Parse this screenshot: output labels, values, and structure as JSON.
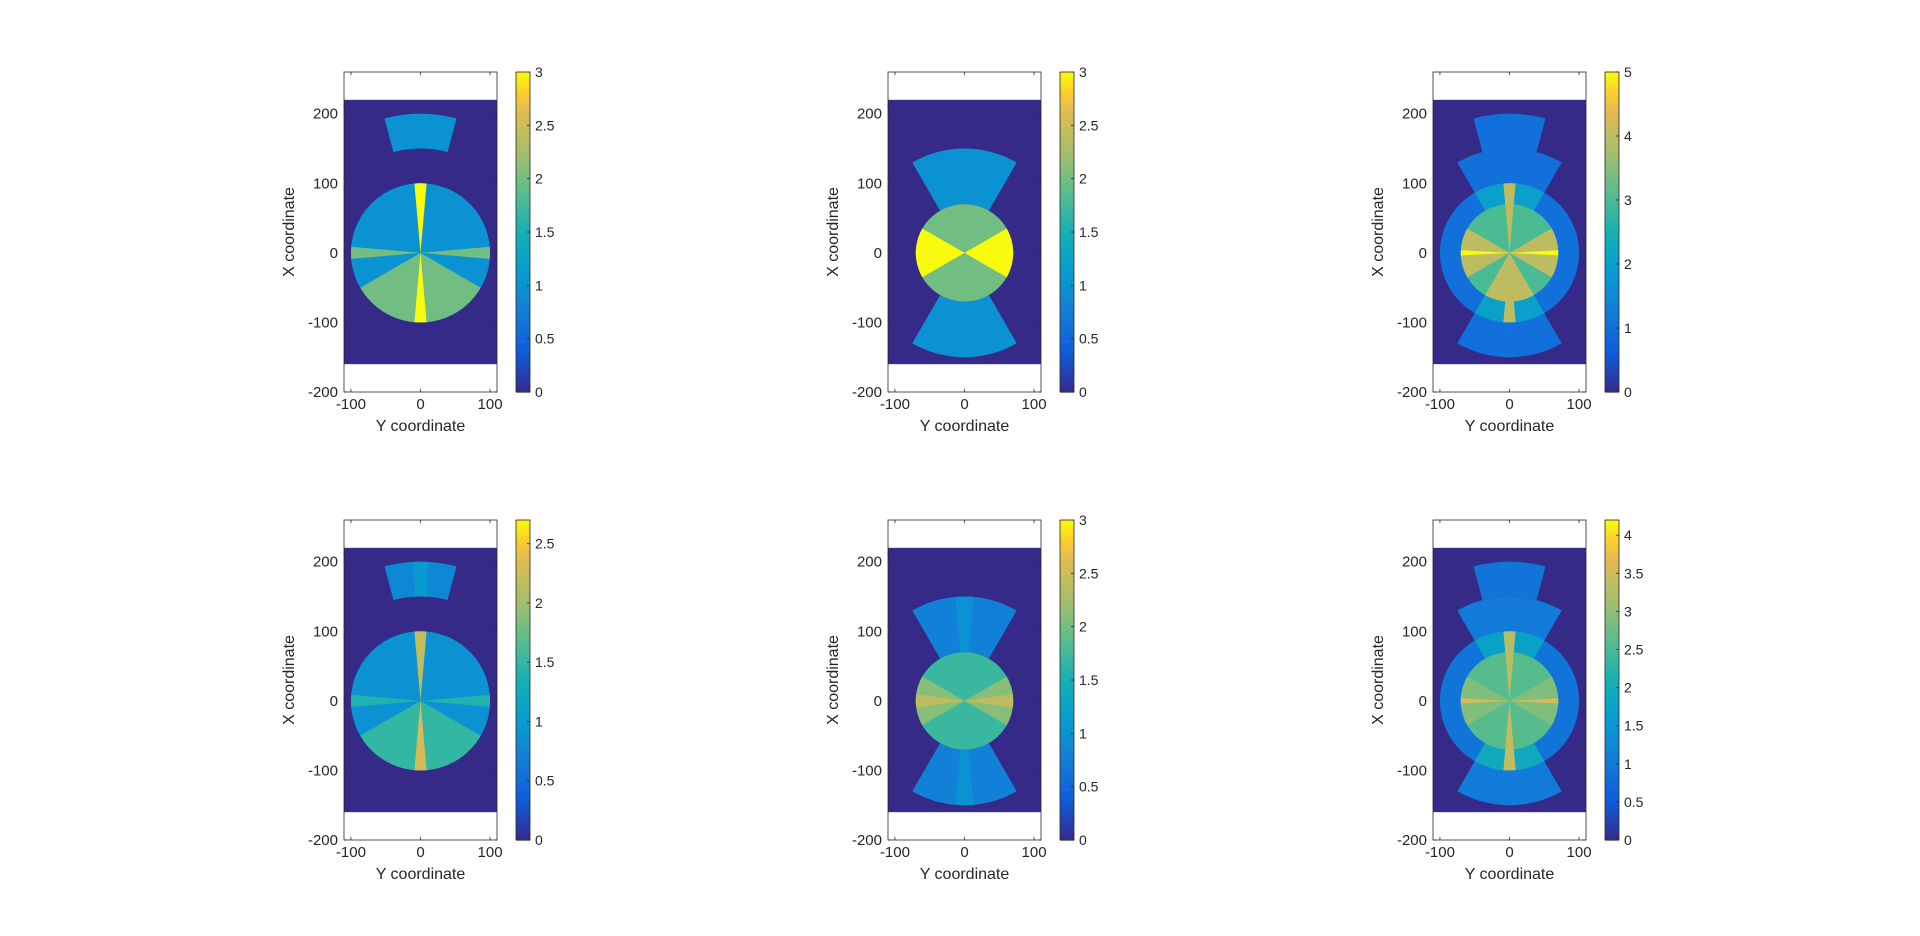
{
  "chart_data": [
    {
      "type": "heatmap",
      "xlabel": "Y coordinate",
      "ylabel": "X coordinate",
      "xlim": [
        -110,
        110
      ],
      "ylim": [
        -200,
        260
      ],
      "x_ticks": [
        "-100",
        "0",
        "100"
      ],
      "y_ticks": [
        "-200",
        "-100",
        "0",
        "100",
        "200"
      ],
      "background": {
        "x": [
          -110,
          110
        ],
        "y": [
          -160,
          220
        ],
        "value": 0
      },
      "colorbar": {
        "min": 0,
        "max": 3,
        "ticks": [
          "0",
          "0.5",
          "1",
          "1.5",
          "2",
          "2.5",
          "3"
        ]
      },
      "regions": [
        {
          "shape": "sector",
          "r_inner": 150,
          "r_outer": 200,
          "angle_from": 75,
          "angle_to": 105,
          "value": 1
        },
        {
          "shape": "sector",
          "r_inner": 0,
          "r_outer": 100,
          "angle_from": 0,
          "angle_to": 360,
          "value": 1
        },
        {
          "shape": "sector",
          "r_inner": 0,
          "r_outer": 100,
          "angle_from": 85,
          "angle_to": 95,
          "value": 3
        },
        {
          "shape": "sector",
          "r_inner": 0,
          "r_outer": 100,
          "angle_from": 210,
          "angle_to": 330,
          "value": 2
        },
        {
          "shape": "sector",
          "r_inner": 0,
          "r_outer": 100,
          "angle_from": 265,
          "angle_to": 275,
          "value": 3
        },
        {
          "shape": "sector",
          "r_inner": 0,
          "r_outer": 100,
          "angle_from": -5,
          "angle_to": 5,
          "value": 2
        },
        {
          "shape": "sector",
          "r_inner": 0,
          "r_outer": 100,
          "angle_from": 175,
          "angle_to": 185,
          "value": 2
        }
      ]
    },
    {
      "type": "heatmap",
      "xlabel": "Y coordinate",
      "ylabel": "X coordinate",
      "xlim": [
        -110,
        110
      ],
      "ylim": [
        -200,
        260
      ],
      "x_ticks": [
        "-100",
        "0",
        "100"
      ],
      "y_ticks": [
        "-200",
        "-100",
        "0",
        "100",
        "200"
      ],
      "background": {
        "x": [
          -110,
          110
        ],
        "y": [
          -160,
          220
        ],
        "value": 0
      },
      "colorbar": {
        "min": 0,
        "max": 3,
        "ticks": [
          "0",
          "0.5",
          "1",
          "1.5",
          "2",
          "2.5",
          "3"
        ]
      },
      "regions": [
        {
          "shape": "sector",
          "r_inner": 70,
          "r_outer": 150,
          "angle_from": 60,
          "angle_to": 120,
          "value": 1
        },
        {
          "shape": "sector",
          "r_inner": 70,
          "r_outer": 150,
          "angle_from": 240,
          "angle_to": 300,
          "value": 1
        },
        {
          "shape": "sector",
          "r_inner": 0,
          "r_outer": 70,
          "angle_from": 0,
          "angle_to": 360,
          "value": 2
        },
        {
          "shape": "sector",
          "r_inner": 0,
          "r_outer": 70,
          "angle_from": -30,
          "angle_to": 30,
          "value": 3
        },
        {
          "shape": "sector",
          "r_inner": 0,
          "r_outer": 70,
          "angle_from": 150,
          "angle_to": 210,
          "value": 3
        }
      ]
    },
    {
      "type": "heatmap",
      "xlabel": "Y coordinate",
      "ylabel": "X coordinate",
      "xlim": [
        -110,
        110
      ],
      "ylim": [
        -200,
        260
      ],
      "x_ticks": [
        "-100",
        "0",
        "100"
      ],
      "y_ticks": [
        "-200",
        "-100",
        "0",
        "100",
        "200"
      ],
      "background": {
        "x": [
          -110,
          110
        ],
        "y": [
          -160,
          220
        ],
        "value": 0
      },
      "colorbar": {
        "min": 0,
        "max": 5,
        "ticks": [
          "0",
          "1",
          "2",
          "3",
          "4",
          "5"
        ]
      },
      "regions": [
        {
          "shape": "sector",
          "r_inner": 150,
          "r_outer": 200,
          "angle_from": 75,
          "angle_to": 105,
          "value": 1
        },
        {
          "shape": "sector",
          "r_inner": 0,
          "r_outer": 100,
          "angle_from": 0,
          "angle_to": 360,
          "value": 1
        },
        {
          "shape": "sector",
          "r_inner": 70,
          "r_outer": 150,
          "angle_from": 60,
          "angle_to": 120,
          "value": 1
        },
        {
          "shape": "sector",
          "r_inner": 70,
          "r_outer": 150,
          "angle_from": 240,
          "angle_to": 300,
          "value": 1
        },
        {
          "shape": "sector",
          "r_inner": 70,
          "r_outer": 100,
          "angle_from": 60,
          "angle_to": 120,
          "value": 2
        },
        {
          "shape": "sector",
          "r_inner": 70,
          "r_outer": 100,
          "angle_from": 240,
          "angle_to": 300,
          "value": 2
        },
        {
          "shape": "sector",
          "r_inner": 0,
          "r_outer": 70,
          "angle_from": 0,
          "angle_to": 360,
          "value": 3
        },
        {
          "shape": "sector",
          "r_inner": 0,
          "r_outer": 70,
          "angle_from": -30,
          "angle_to": 30,
          "value": 4
        },
        {
          "shape": "sector",
          "r_inner": 0,
          "r_outer": 70,
          "angle_from": 150,
          "angle_to": 210,
          "value": 4
        },
        {
          "shape": "sector",
          "r_inner": 0,
          "r_outer": 70,
          "angle_from": 240,
          "angle_to": 300,
          "value": 4
        },
        {
          "shape": "sector",
          "r_inner": 0,
          "r_outer": 100,
          "angle_from": 85,
          "angle_to": 95,
          "value": 4
        },
        {
          "shape": "sector",
          "r_inner": 0,
          "r_outer": 100,
          "angle_from": 265,
          "angle_to": 275,
          "value": 4
        },
        {
          "shape": "sector",
          "r_inner": 0,
          "r_outer": 70,
          "angle_from": -3,
          "angle_to": 3,
          "value": 5
        },
        {
          "shape": "sector",
          "r_inner": 0,
          "r_outer": 70,
          "angle_from": 177,
          "angle_to": 183,
          "value": 5
        }
      ]
    },
    {
      "type": "heatmap",
      "xlabel": "Y coordinate",
      "ylabel": "X coordinate",
      "xlim": [
        -110,
        110
      ],
      "ylim": [
        -200,
        260
      ],
      "x_ticks": [
        "-100",
        "0",
        "100"
      ],
      "y_ticks": [
        "-200",
        "-100",
        "0",
        "100",
        "200"
      ],
      "background": {
        "x": [
          -110,
          110
        ],
        "y": [
          -160,
          220
        ],
        "value": 0
      },
      "colorbar": {
        "min": 0,
        "max": 2.7,
        "ticks": [
          "0",
          "0.5",
          "1",
          "1.5",
          "2",
          "2.5"
        ]
      },
      "regions": [
        {
          "shape": "sector",
          "r_inner": 150,
          "r_outer": 200,
          "angle_from": 75,
          "angle_to": 105,
          "value": 0.8
        },
        {
          "shape": "sector",
          "r_inner": 150,
          "r_outer": 200,
          "angle_from": 87,
          "angle_to": 93,
          "value": 1.0
        },
        {
          "shape": "sector",
          "r_inner": 0,
          "r_outer": 100,
          "angle_from": 0,
          "angle_to": 360,
          "value": 0.9
        },
        {
          "shape": "sector",
          "r_inner": 0,
          "r_outer": 100,
          "angle_from": 210,
          "angle_to": 330,
          "value": 1.5
        },
        {
          "shape": "sector",
          "r_inner": 0,
          "r_outer": 100,
          "angle_from": 85,
          "angle_to": 95,
          "value": 2.2
        },
        {
          "shape": "sector",
          "r_inner": 0,
          "r_outer": 100,
          "angle_from": 265,
          "angle_to": 275,
          "value": 2.3
        },
        {
          "shape": "sector",
          "r_inner": 0,
          "r_outer": 100,
          "angle_from": -5,
          "angle_to": 5,
          "value": 1.4
        },
        {
          "shape": "sector",
          "r_inner": 0,
          "r_outer": 100,
          "angle_from": 175,
          "angle_to": 185,
          "value": 1.4
        }
      ]
    },
    {
      "type": "heatmap",
      "xlabel": "Y coordinate",
      "ylabel": "X coordinate",
      "xlim": [
        -110,
        110
      ],
      "ylim": [
        -200,
        260
      ],
      "x_ticks": [
        "-100",
        "0",
        "100"
      ],
      "y_ticks": [
        "-200",
        "-100",
        "0",
        "100",
        "200"
      ],
      "background": {
        "x": [
          -110,
          110
        ],
        "y": [
          -160,
          220
        ],
        "value": 0
      },
      "colorbar": {
        "min": 0,
        "max": 3,
        "ticks": [
          "0",
          "0.5",
          "1",
          "1.5",
          "2",
          "2.5",
          "3"
        ]
      },
      "regions": [
        {
          "shape": "sector",
          "r_inner": 70,
          "r_outer": 150,
          "angle_from": 60,
          "angle_to": 120,
          "value": 0.8
        },
        {
          "shape": "sector",
          "r_inner": 70,
          "r_outer": 150,
          "angle_from": 240,
          "angle_to": 300,
          "value": 0.8
        },
        {
          "shape": "sector",
          "r_inner": 70,
          "r_outer": 150,
          "angle_from": 85,
          "angle_to": 95,
          "value": 1.0
        },
        {
          "shape": "sector",
          "r_inner": 70,
          "r_outer": 150,
          "angle_from": 265,
          "angle_to": 275,
          "value": 1.0
        },
        {
          "shape": "sector",
          "r_inner": 0,
          "r_outer": 70,
          "angle_from": 0,
          "angle_to": 360,
          "value": 1.7
        },
        {
          "shape": "sector",
          "r_inner": 0,
          "r_outer": 70,
          "angle_from": -30,
          "angle_to": 30,
          "value": 2.1
        },
        {
          "shape": "sector",
          "r_inner": 0,
          "r_outer": 70,
          "angle_from": 150,
          "angle_to": 210,
          "value": 2.1
        },
        {
          "shape": "sector",
          "r_inner": 0,
          "r_outer": 70,
          "angle_from": -8,
          "angle_to": 8,
          "value": 2.4
        },
        {
          "shape": "sector",
          "r_inner": 0,
          "r_outer": 70,
          "angle_from": 172,
          "angle_to": 188,
          "value": 2.4
        }
      ]
    },
    {
      "type": "heatmap",
      "xlabel": "Y coordinate",
      "ylabel": "X coordinate",
      "xlim": [
        -110,
        110
      ],
      "ylim": [
        -200,
        260
      ],
      "x_ticks": [
        "-100",
        "0",
        "100"
      ],
      "y_ticks": [
        "-200",
        "-100",
        "0",
        "100",
        "200"
      ],
      "background": {
        "x": [
          -110,
          110
        ],
        "y": [
          -160,
          220
        ],
        "value": 0
      },
      "colorbar": {
        "min": 0,
        "max": 4.2,
        "ticks": [
          "0",
          "0.5",
          "1",
          "1.5",
          "2",
          "2.5",
          "3",
          "3.5",
          "4"
        ]
      },
      "regions": [
        {
          "shape": "sector",
          "r_inner": 150,
          "r_outer": 200,
          "angle_from": 75,
          "angle_to": 105,
          "value": 0.9
        },
        {
          "shape": "sector",
          "r_inner": 0,
          "r_outer": 100,
          "angle_from": 0,
          "angle_to": 360,
          "value": 0.9
        },
        {
          "shape": "sector",
          "r_inner": 70,
          "r_outer": 150,
          "angle_from": 60,
          "angle_to": 120,
          "value": 1.0
        },
        {
          "shape": "sector",
          "r_inner": 70,
          "r_outer": 150,
          "angle_from": 240,
          "angle_to": 300,
          "value": 1.0
        },
        {
          "shape": "sector",
          "r_inner": 70,
          "r_outer": 100,
          "angle_from": 60,
          "angle_to": 120,
          "value": 1.7
        },
        {
          "shape": "sector",
          "r_inner": 70,
          "r_outer": 100,
          "angle_from": 240,
          "angle_to": 300,
          "value": 1.9
        },
        {
          "shape": "sector",
          "r_inner": 0,
          "r_outer": 70,
          "angle_from": 0,
          "angle_to": 360,
          "value": 2.6
        },
        {
          "shape": "sector",
          "r_inner": 0,
          "r_outer": 70,
          "angle_from": -30,
          "angle_to": 30,
          "value": 2.9
        },
        {
          "shape": "sector",
          "r_inner": 0,
          "r_outer": 70,
          "angle_from": 150,
          "angle_to": 210,
          "value": 2.9
        },
        {
          "shape": "sector",
          "r_inner": 0,
          "r_outer": 100,
          "angle_from": 85,
          "angle_to": 95,
          "value": 3.3
        },
        {
          "shape": "sector",
          "r_inner": 0,
          "r_outer": 100,
          "angle_from": 265,
          "angle_to": 275,
          "value": 3.4
        },
        {
          "shape": "sector",
          "r_inner": 0,
          "r_outer": 70,
          "angle_from": -3,
          "angle_to": 3,
          "value": 3.6
        },
        {
          "shape": "sector",
          "r_inner": 0,
          "r_outer": 70,
          "angle_from": 177,
          "angle_to": 183,
          "value": 3.6
        }
      ]
    }
  ]
}
